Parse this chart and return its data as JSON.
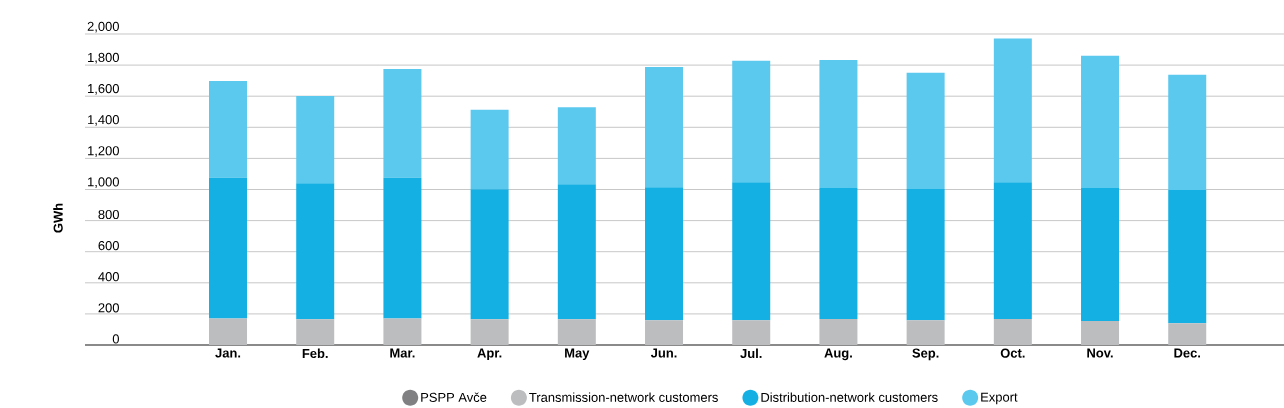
{
  "chart_data": {
    "type": "bar",
    "stacked": true,
    "ylabel": "GWh",
    "categories": [
      "Jan.",
      "Feb.",
      "Mar.",
      "Apr.",
      "May",
      "Jun.",
      "Jul.",
      "Aug.",
      "Sep.",
      "Oct.",
      "Nov.",
      "Dec."
    ],
    "series": [
      {
        "name": "PSPP Avče",
        "color": "#808083",
        "values": [
          0,
          0,
          0,
          0,
          0,
          0,
          0,
          0,
          0,
          0,
          0,
          0
        ]
      },
      {
        "name": "Transmission-network customers",
        "color": "#bcbdbf",
        "values": [
          171,
          166,
          171,
          166,
          166,
          159,
          159,
          167,
          159,
          167,
          154,
          140
        ]
      },
      {
        "name": "Distribution-network customers",
        "color": "#14b0e4",
        "values": [
          904,
          874,
          904,
          836,
          868,
          856,
          887,
          842,
          845,
          879,
          855,
          856
        ]
      },
      {
        "name": "Export",
        "color": "#5bc8ee",
        "values": [
          622,
          561,
          700,
          511,
          495,
          773,
          782,
          824,
          747,
          925,
          851,
          742
        ]
      }
    ],
    "ylim": [
      0,
      2000
    ],
    "yticks": [
      0,
      200,
      400,
      600,
      800,
      {
        "value": 1000,
        "label": "1,000"
      },
      {
        "value": 1200,
        "label": "1,200"
      },
      {
        "value": 1400,
        "label": "1,400"
      },
      {
        "value": 1600,
        "label": "1,600"
      },
      {
        "value": 1800,
        "label": "1,800"
      },
      {
        "value": 2000,
        "label": "2,000"
      }
    ],
    "grid": "y",
    "legend": "bottom"
  }
}
